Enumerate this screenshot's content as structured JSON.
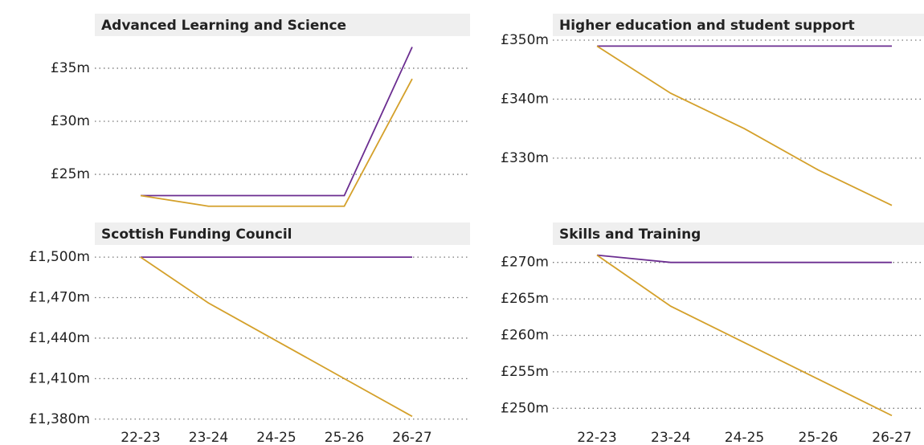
{
  "chart_data": [
    {
      "type": "line",
      "title": "Advanced Learning and Science",
      "categories": [
        null,
        null,
        null,
        null,
        null
      ],
      "series": [
        {
          "color": "#6b2d90",
          "values": [
            23,
            23,
            23,
            23,
            37
          ]
        },
        {
          "color": "#d4a02a",
          "values": [
            23,
            22,
            22,
            22,
            34
          ]
        }
      ],
      "ylim": [
        21.6,
        38.4
      ],
      "yticks": [
        {
          "value": 25,
          "label": "£25m"
        },
        {
          "value": 30,
          "label": "£30m"
        },
        {
          "value": 35,
          "label": "£35m"
        }
      ],
      "grid": true
    },
    {
      "type": "line",
      "title": "Higher education and student support",
      "categories": [
        null,
        null,
        null,
        null,
        null
      ],
      "series": [
        {
          "color": "#6b2d90",
          "values": [
            349,
            349,
            349,
            349,
            349
          ]
        },
        {
          "color": "#d4a02a",
          "values": [
            349,
            341,
            335,
            328,
            322
          ]
        }
      ],
      "ylim": [
        321,
        351.5
      ],
      "yticks": [
        {
          "value": 330,
          "label": "£330m"
        },
        {
          "value": 340,
          "label": "£340m"
        },
        {
          "value": 350,
          "label": "£350m"
        }
      ],
      "grid": true
    },
    {
      "type": "line",
      "title": "Scottish Funding Council",
      "categories": [
        "22-23",
        "23-24",
        "24-25",
        "25-26",
        "26-27"
      ],
      "series": [
        {
          "color": "#6b2d90",
          "values": [
            1500,
            1500,
            1500,
            1500,
            1500
          ]
        },
        {
          "color": "#d4a02a",
          "values": [
            1500,
            1466,
            1438,
            1410,
            1382
          ]
        }
      ],
      "ylim": [
        1374.5,
        1509
      ],
      "yticks": [
        {
          "value": 1380,
          "label": "£1,380m"
        },
        {
          "value": 1410,
          "label": "£1,410m"
        },
        {
          "value": 1440,
          "label": "£1,440m"
        },
        {
          "value": 1470,
          "label": "£1,470m"
        },
        {
          "value": 1500,
          "label": "£1,500m"
        }
      ],
      "grid": true
    },
    {
      "type": "line",
      "title": "Skills and Training",
      "categories": [
        "22-23",
        "23-24",
        "24-25",
        "25-26",
        "26-27"
      ],
      "series": [
        {
          "color": "#6b2d90",
          "values": [
            271,
            270,
            270,
            270,
            270
          ]
        },
        {
          "color": "#d4a02a",
          "values": [
            271,
            264,
            259,
            254,
            249
          ]
        }
      ],
      "ylim": [
        247.5,
        272.5
      ],
      "yticks": [
        {
          "value": 250,
          "label": "£250m"
        },
        {
          "value": 255,
          "label": "£255m"
        },
        {
          "value": 260,
          "label": "£260m"
        },
        {
          "value": 265,
          "label": "£265m"
        },
        {
          "value": 270,
          "label": "£270m"
        }
      ],
      "grid": true
    }
  ]
}
